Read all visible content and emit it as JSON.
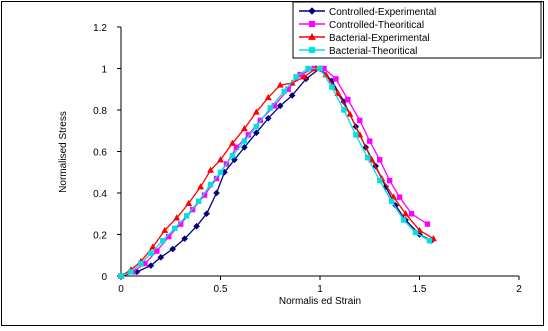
{
  "chart_data": {
    "type": "line",
    "title": "",
    "xlabel": "Normalis ed Strain",
    "ylabel": "Normalised Stress",
    "xlim": [
      0,
      2
    ],
    "ylim": [
      0,
      1.2
    ],
    "xticks": [
      "0",
      "0.5",
      "1",
      "1.5",
      "2"
    ],
    "yticks": [
      "0",
      "0.2",
      "0.4",
      "0.6",
      "0.8",
      "1",
      "1.2"
    ],
    "grid": false,
    "legend_position": "top-right",
    "series": [
      {
        "name": "Controlled-Experimental",
        "color": "#000080",
        "marker": "diamond",
        "points": [
          [
            0,
            0
          ],
          [
            0.08,
            0.02
          ],
          [
            0.15,
            0.05
          ],
          [
            0.2,
            0.09
          ],
          [
            0.26,
            0.13
          ],
          [
            0.32,
            0.18
          ],
          [
            0.38,
            0.24
          ],
          [
            0.43,
            0.3
          ],
          [
            0.48,
            0.4
          ],
          [
            0.52,
            0.5
          ],
          [
            0.57,
            0.56
          ],
          [
            0.62,
            0.62
          ],
          [
            0.68,
            0.69
          ],
          [
            0.74,
            0.76
          ],
          [
            0.8,
            0.82
          ],
          [
            0.86,
            0.87
          ],
          [
            0.93,
            0.95
          ],
          [
            1.0,
            1.0
          ],
          [
            1.06,
            0.94
          ],
          [
            1.12,
            0.84
          ],
          [
            1.18,
            0.72
          ],
          [
            1.23,
            0.62
          ],
          [
            1.28,
            0.53
          ],
          [
            1.33,
            0.43
          ],
          [
            1.38,
            0.34
          ],
          [
            1.43,
            0.27
          ],
          [
            1.5,
            0.2
          ],
          [
            1.56,
            0.17
          ]
        ]
      },
      {
        "name": "Controlled-Theoritical",
        "color": "#ff00ff",
        "marker": "square",
        "points": [
          [
            0,
            0
          ],
          [
            0.06,
            0.02
          ],
          [
            0.12,
            0.06
          ],
          [
            0.18,
            0.12
          ],
          [
            0.24,
            0.19
          ],
          [
            0.3,
            0.25
          ],
          [
            0.36,
            0.32
          ],
          [
            0.42,
            0.39
          ],
          [
            0.48,
            0.47
          ],
          [
            0.53,
            0.54
          ],
          [
            0.58,
            0.62
          ],
          [
            0.64,
            0.68
          ],
          [
            0.7,
            0.75
          ],
          [
            0.77,
            0.82
          ],
          [
            0.84,
            0.9
          ],
          [
            0.9,
            0.97
          ],
          [
            0.97,
            1.0
          ],
          [
            1.02,
            1.0
          ],
          [
            1.08,
            0.95
          ],
          [
            1.14,
            0.85
          ],
          [
            1.2,
            0.75
          ],
          [
            1.25,
            0.65
          ],
          [
            1.3,
            0.56
          ],
          [
            1.35,
            0.46
          ],
          [
            1.4,
            0.38
          ],
          [
            1.46,
            0.3
          ],
          [
            1.54,
            0.25
          ]
        ]
      },
      {
        "name": "Bacterial-Experimental",
        "color": "#ff0000",
        "marker": "triangle",
        "points": [
          [
            0,
            0
          ],
          [
            0.05,
            0.03
          ],
          [
            0.1,
            0.07
          ],
          [
            0.16,
            0.14
          ],
          [
            0.22,
            0.22
          ],
          [
            0.28,
            0.28
          ],
          [
            0.34,
            0.35
          ],
          [
            0.4,
            0.43
          ],
          [
            0.45,
            0.51
          ],
          [
            0.5,
            0.56
          ],
          [
            0.56,
            0.64
          ],
          [
            0.62,
            0.71
          ],
          [
            0.68,
            0.79
          ],
          [
            0.74,
            0.86
          ],
          [
            0.8,
            0.92
          ],
          [
            0.86,
            0.93
          ],
          [
            0.92,
            0.96
          ],
          [
            0.98,
            1.0
          ],
          [
            1.03,
            0.97
          ],
          [
            1.09,
            0.88
          ],
          [
            1.15,
            0.78
          ],
          [
            1.2,
            0.68
          ],
          [
            1.26,
            0.56
          ],
          [
            1.31,
            0.47
          ],
          [
            1.37,
            0.38
          ],
          [
            1.43,
            0.3
          ],
          [
            1.5,
            0.22
          ],
          [
            1.57,
            0.18
          ]
        ]
      },
      {
        "name": "Bacterial-Theoritical",
        "color": "#00e0e0",
        "marker": "square",
        "points": [
          [
            0,
            0
          ],
          [
            0.05,
            0.02
          ],
          [
            0.1,
            0.06
          ],
          [
            0.15,
            0.11
          ],
          [
            0.21,
            0.17
          ],
          [
            0.27,
            0.23
          ],
          [
            0.33,
            0.29
          ],
          [
            0.39,
            0.36
          ],
          [
            0.45,
            0.44
          ],
          [
            0.5,
            0.5
          ],
          [
            0.56,
            0.58
          ],
          [
            0.62,
            0.65
          ],
          [
            0.68,
            0.72
          ],
          [
            0.75,
            0.81
          ],
          [
            0.82,
            0.89
          ],
          [
            0.88,
            0.96
          ],
          [
            0.94,
            1.0
          ],
          [
            1.0,
            1.0
          ],
          [
            1.06,
            0.91
          ],
          [
            1.12,
            0.8
          ],
          [
            1.18,
            0.68
          ],
          [
            1.24,
            0.57
          ],
          [
            1.3,
            0.46
          ],
          [
            1.36,
            0.36
          ],
          [
            1.42,
            0.27
          ],
          [
            1.48,
            0.21
          ],
          [
            1.55,
            0.17
          ]
        ]
      }
    ]
  }
}
